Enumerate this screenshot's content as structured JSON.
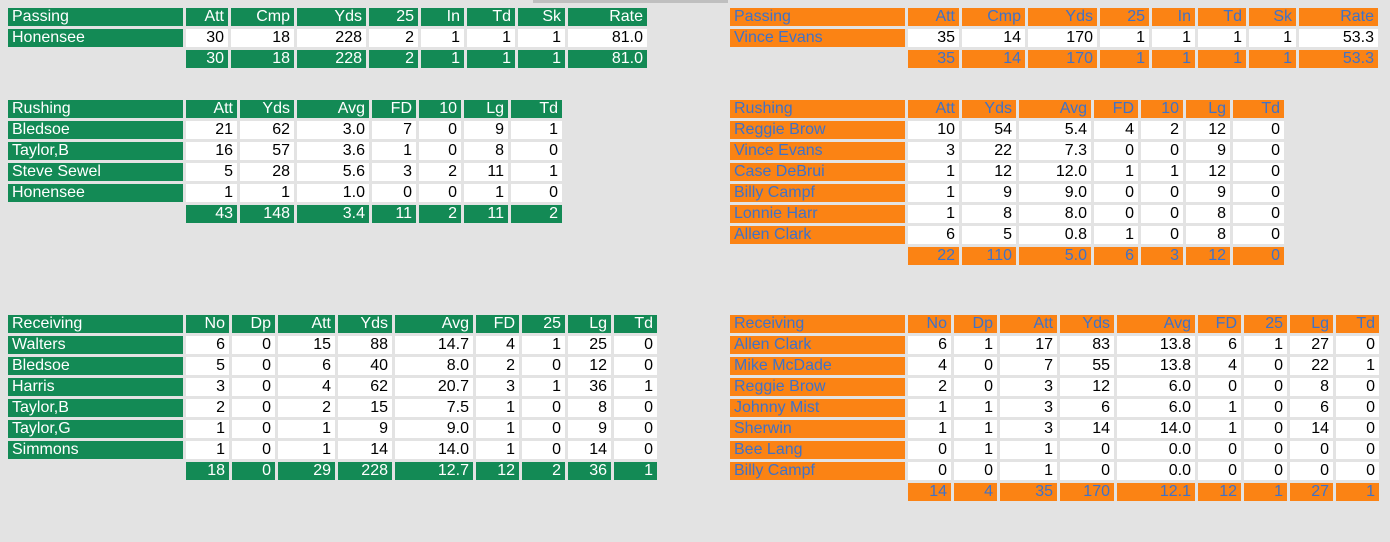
{
  "home": {
    "passing": {
      "title": "Passing",
      "headers": [
        "Att",
        "Cmp",
        "Yds",
        "25",
        "In",
        "Td",
        "Sk",
        "Rate"
      ],
      "rows": [
        {
          "name": "Honensee",
          "vals": [
            "30",
            "18",
            "228",
            "2",
            "1",
            "1",
            "1",
            "81.0"
          ]
        }
      ],
      "total": [
        "30",
        "18",
        "228",
        "2",
        "1",
        "1",
        "1",
        "81.0"
      ]
    },
    "rushing": {
      "title": "Rushing",
      "headers": [
        "Att",
        "Yds",
        "Avg",
        "FD",
        "10",
        "Lg",
        "Td"
      ],
      "rows": [
        {
          "name": "Bledsoe",
          "vals": [
            "21",
            "62",
            "3.0",
            "7",
            "0",
            "9",
            "1"
          ]
        },
        {
          "name": "Taylor,B",
          "vals": [
            "16",
            "57",
            "3.6",
            "1",
            "0",
            "8",
            "0"
          ]
        },
        {
          "name": "Steve Sewel",
          "vals": [
            "5",
            "28",
            "5.6",
            "3",
            "2",
            "11",
            "1"
          ]
        },
        {
          "name": "Honensee",
          "vals": [
            "1",
            "1",
            "1.0",
            "0",
            "0",
            "1",
            "0"
          ]
        }
      ],
      "total": [
        "43",
        "148",
        "3.4",
        "11",
        "2",
        "11",
        "2"
      ]
    },
    "receiving": {
      "title": "Receiving",
      "headers": [
        "No",
        "Dp",
        "Att",
        "Yds",
        "Avg",
        "FD",
        "25",
        "Lg",
        "Td"
      ],
      "rows": [
        {
          "name": "Walters",
          "vals": [
            "6",
            "0",
            "15",
            "88",
            "14.7",
            "4",
            "1",
            "25",
            "0"
          ]
        },
        {
          "name": "Bledsoe",
          "vals": [
            "5",
            "0",
            "6",
            "40",
            "8.0",
            "2",
            "0",
            "12",
            "0"
          ]
        },
        {
          "name": "Harris",
          "vals": [
            "3",
            "0",
            "4",
            "62",
            "20.7",
            "3",
            "1",
            "36",
            "1"
          ]
        },
        {
          "name": "Taylor,B",
          "vals": [
            "2",
            "0",
            "2",
            "15",
            "7.5",
            "1",
            "0",
            "8",
            "0"
          ]
        },
        {
          "name": "Taylor,G",
          "vals": [
            "1",
            "0",
            "1",
            "9",
            "9.0",
            "1",
            "0",
            "9",
            "0"
          ]
        },
        {
          "name": "Simmons",
          "vals": [
            "1",
            "0",
            "1",
            "14",
            "14.0",
            "1",
            "0",
            "14",
            "0"
          ]
        }
      ],
      "total": [
        "18",
        "0",
        "29",
        "228",
        "12.7",
        "12",
        "2",
        "36",
        "1"
      ]
    }
  },
  "away": {
    "passing": {
      "title": "Passing",
      "headers": [
        "Att",
        "Cmp",
        "Yds",
        "25",
        "In",
        "Td",
        "Sk",
        "Rate"
      ],
      "rows": [
        {
          "name": "Vince Evans",
          "vals": [
            "35",
            "14",
            "170",
            "1",
            "1",
            "1",
            "1",
            "53.3"
          ]
        }
      ],
      "total": [
        "35",
        "14",
        "170",
        "1",
        "1",
        "1",
        "1",
        "53.3"
      ]
    },
    "rushing": {
      "title": "Rushing",
      "headers": [
        "Att",
        "Yds",
        "Avg",
        "FD",
        "10",
        "Lg",
        "Td"
      ],
      "rows": [
        {
          "name": "Reggie Brow",
          "vals": [
            "10",
            "54",
            "5.4",
            "4",
            "2",
            "12",
            "0"
          ]
        },
        {
          "name": "Vince Evans",
          "vals": [
            "3",
            "22",
            "7.3",
            "0",
            "0",
            "9",
            "0"
          ]
        },
        {
          "name": "Case DeBrui",
          "vals": [
            "1",
            "12",
            "12.0",
            "1",
            "1",
            "12",
            "0"
          ]
        },
        {
          "name": "Billy Campf",
          "vals": [
            "1",
            "9",
            "9.0",
            "0",
            "0",
            "9",
            "0"
          ]
        },
        {
          "name": "Lonnie Harr",
          "vals": [
            "1",
            "8",
            "8.0",
            "0",
            "0",
            "8",
            "0"
          ]
        },
        {
          "name": "Allen Clark",
          "vals": [
            "6",
            "5",
            "0.8",
            "1",
            "0",
            "8",
            "0"
          ]
        }
      ],
      "total": [
        "22",
        "110",
        "5.0",
        "6",
        "3",
        "12",
        "0"
      ]
    },
    "receiving": {
      "title": "Receiving",
      "headers": [
        "No",
        "Dp",
        "Att",
        "Yds",
        "Avg",
        "FD",
        "25",
        "Lg",
        "Td"
      ],
      "rows": [
        {
          "name": "Allen Clark",
          "vals": [
            "6",
            "1",
            "17",
            "83",
            "13.8",
            "6",
            "1",
            "27",
            "0"
          ]
        },
        {
          "name": "Mike McDade",
          "vals": [
            "4",
            "0",
            "7",
            "55",
            "13.8",
            "4",
            "0",
            "22",
            "1"
          ]
        },
        {
          "name": "Reggie Brow",
          "vals": [
            "2",
            "0",
            "3",
            "12",
            "6.0",
            "0",
            "0",
            "8",
            "0"
          ]
        },
        {
          "name": "Johnny Mist",
          "vals": [
            "1",
            "1",
            "3",
            "6",
            "6.0",
            "1",
            "0",
            "6",
            "0"
          ]
        },
        {
          "name": "Sherwin",
          "vals": [
            "1",
            "1",
            "3",
            "14",
            "14.0",
            "1",
            "0",
            "14",
            "0"
          ]
        },
        {
          "name": "Bee Lang",
          "vals": [
            "0",
            "1",
            "1",
            "0",
            "0.0",
            "0",
            "0",
            "0",
            "0"
          ]
        },
        {
          "name": "Billy Campf",
          "vals": [
            "0",
            "0",
            "1",
            "0",
            "0.0",
            "0",
            "0",
            "0",
            "0"
          ]
        }
      ],
      "total": [
        "14",
        "4",
        "35",
        "170",
        "12.1",
        "12",
        "1",
        "27",
        "1"
      ]
    }
  }
}
